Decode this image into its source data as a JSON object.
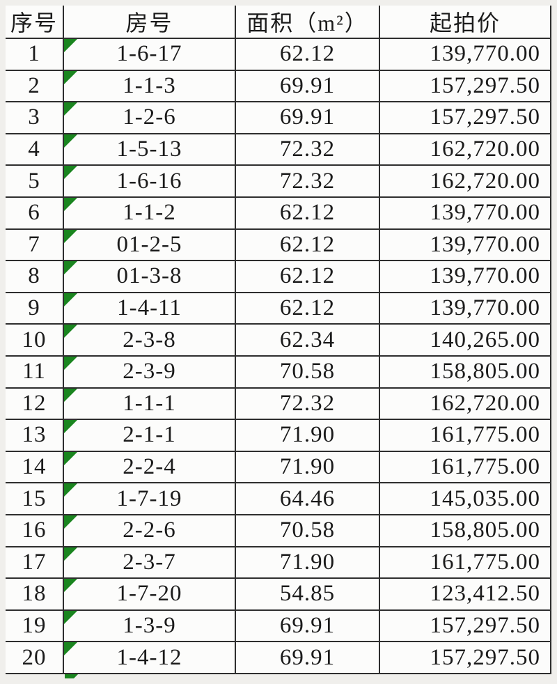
{
  "table": {
    "columns": [
      {
        "key": "index",
        "label": "序号"
      },
      {
        "key": "room",
        "label": "房号"
      },
      {
        "key": "area",
        "label": "面积（m²）"
      },
      {
        "key": "price",
        "label": "起拍价"
      }
    ],
    "rows": [
      {
        "index": "1",
        "room": "1-6-17",
        "area": "62.12",
        "price": "139,770.00"
      },
      {
        "index": "2",
        "room": "1-1-3",
        "area": "69.91",
        "price": "157,297.50"
      },
      {
        "index": "3",
        "room": "1-2-6",
        "area": "69.91",
        "price": "157,297.50"
      },
      {
        "index": "4",
        "room": "1-5-13",
        "area": "72.32",
        "price": "162,720.00"
      },
      {
        "index": "5",
        "room": "1-6-16",
        "area": "72.32",
        "price": "162,720.00"
      },
      {
        "index": "6",
        "room": "1-1-2",
        "area": "62.12",
        "price": "139,770.00"
      },
      {
        "index": "7",
        "room": "01-2-5",
        "area": "62.12",
        "price": "139,770.00"
      },
      {
        "index": "8",
        "room": "01-3-8",
        "area": "62.12",
        "price": "139,770.00"
      },
      {
        "index": "9",
        "room": "1-4-11",
        "area": "62.12",
        "price": "139,770.00"
      },
      {
        "index": "10",
        "room": "2-3-8",
        "area": "62.34",
        "price": "140,265.00"
      },
      {
        "index": "11",
        "room": "2-3-9",
        "area": "70.58",
        "price": "158,805.00"
      },
      {
        "index": "12",
        "room": "1-1-1",
        "area": "72.32",
        "price": "162,720.00"
      },
      {
        "index": "13",
        "room": "2-1-1",
        "area": "71.90",
        "price": "161,775.00"
      },
      {
        "index": "14",
        "room": "2-2-4",
        "area": "71.90",
        "price": "161,775.00"
      },
      {
        "index": "15",
        "room": "1-7-19",
        "area": "64.46",
        "price": "145,035.00"
      },
      {
        "index": "16",
        "room": "2-2-6",
        "area": "70.58",
        "price": "158,805.00"
      },
      {
        "index": "17",
        "room": "2-3-7",
        "area": "71.90",
        "price": "161,775.00"
      },
      {
        "index": "18",
        "room": "1-7-20",
        "area": "54.85",
        "price": "123,412.50"
      },
      {
        "index": "19",
        "room": "1-3-9",
        "area": "69.91",
        "price": "157,297.50"
      },
      {
        "index": "20",
        "room": "1-4-12",
        "area": "69.91",
        "price": "157,297.50"
      }
    ],
    "room_cell_flag": "text-format-green-corner-flag",
    "partial_next_row_flag_visible": true
  },
  "colors": {
    "page_background": "#f0efec",
    "cell_background": "#fcfcfb",
    "grid_border": "#2e2e2e",
    "text": "#1b1b1b",
    "flag_green": "#1a851f"
  }
}
